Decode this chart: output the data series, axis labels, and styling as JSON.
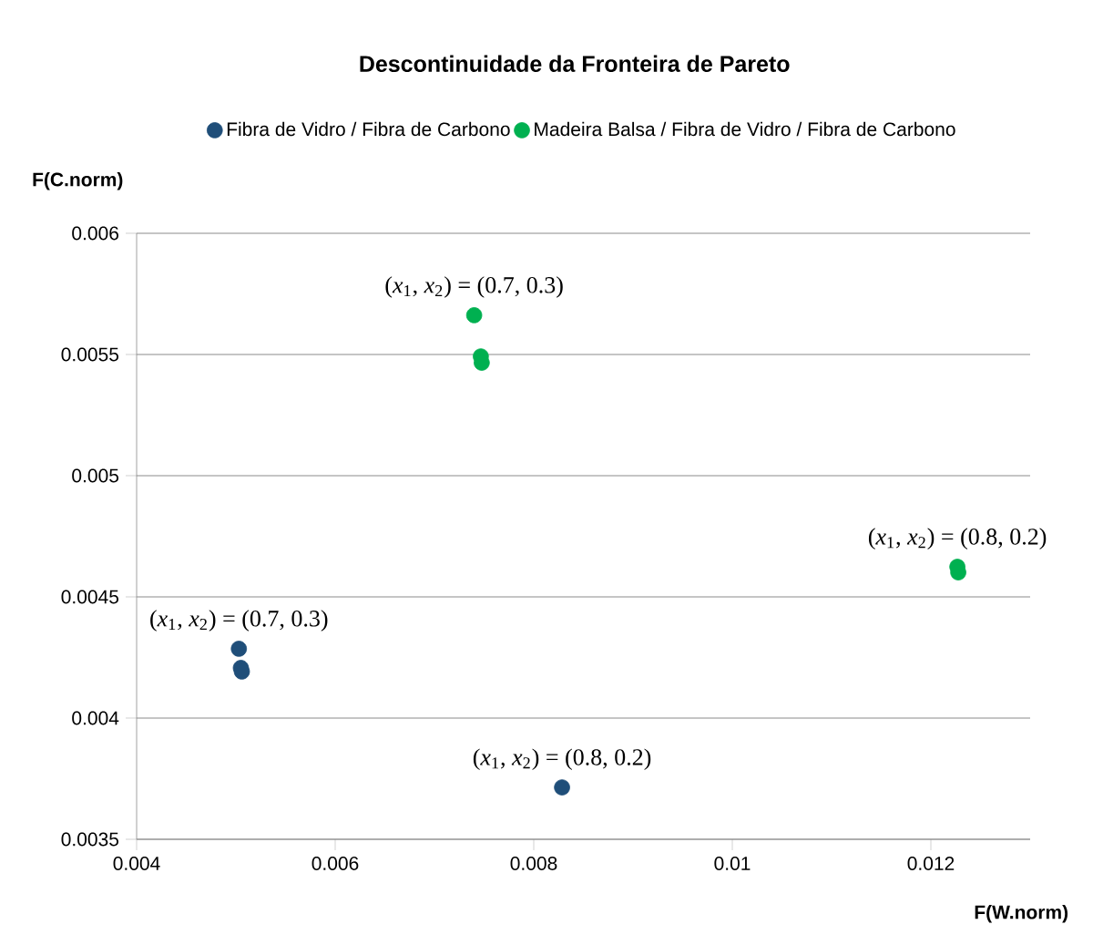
{
  "chart_data": {
    "type": "scatter",
    "title": "Descontinuidade da Fronteira de Pareto",
    "xlabel": "F(W.norm)",
    "ylabel": "F(C.norm)",
    "series": [
      {
        "name": "Fibra de Vidro / Fibra de Carbono",
        "color": "#1f4e79",
        "x": [
          0.00503,
          0.00505,
          0.00506,
          0.008285
        ],
        "values": [
          0.004286,
          0.004207,
          0.004192,
          0.003714
        ]
      },
      {
        "name": "Madeira Balsa / Fibra de Vidro / Fibra de Carbono",
        "color": "#00b050",
        "x": [
          0.0074,
          0.007467,
          0.007476,
          0.012267,
          0.012276
        ],
        "values": [
          0.005662,
          0.005492,
          0.005466,
          0.004624,
          0.004601
        ]
      }
    ],
    "annotations": [
      {
        "text": "(*x*$_{1}$, *x*$_{2}$) = (0.7, 0.3)",
        "x": 0.00503,
        "y": 0.004286
      },
      {
        "text": "(*x*$_{1}$, *x*$_{2}$) = (0.8, 0.2)",
        "x": 0.008285,
        "y": 0.003714
      },
      {
        "text": "(*x*$_{1}$, *x*$_{2}$) = (0.7, 0.3)",
        "x": 0.0074,
        "y": 0.005662
      },
      {
        "text": "(*x*$_{1}$, *x*$_{2}$) = (0.8, 0.2)",
        "x": 0.012267,
        "y": 0.004624
      }
    ],
    "xlim": [
      0.004,
      0.013
    ],
    "xticks": [
      0.004,
      0.006,
      0.008,
      0.01,
      0.012
    ],
    "ylim": [
      0.0035,
      0.006
    ],
    "yticks": [
      0.0035,
      0.004,
      0.0045,
      0.005,
      0.0055,
      0.006
    ],
    "grid": "y",
    "legend": "top",
    "marker": "circle"
  }
}
